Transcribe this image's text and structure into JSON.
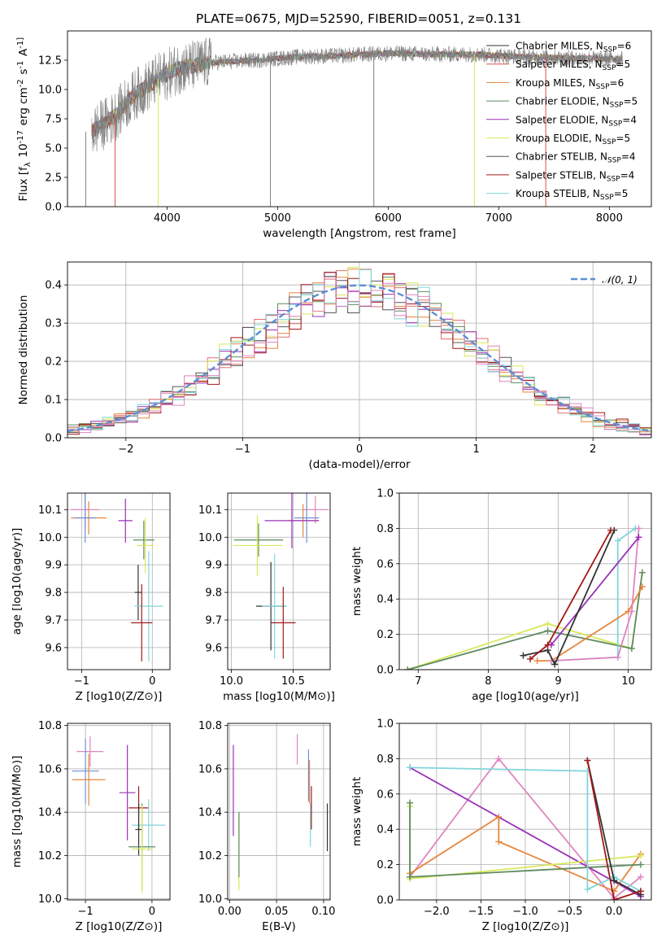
{
  "figure": {
    "title": "PLATE=0675, MJD=52590, FIBERID=0051, z=0.131"
  },
  "chart_data": [
    {
      "type": "line",
      "title": "PLATE=0675, MJD=52590, FIBERID=0051, z=0.131",
      "xlabel": "wavelength [Angstrom, rest frame]",
      "ylabel": "Flux [f_λ 10^-17 erg cm^-2 s^-1 A^-1]",
      "xlim": [
        3100,
        8380
      ],
      "ylim": [
        0,
        15
      ],
      "xticks": [
        4000,
        5000,
        6000,
        7000,
        8000
      ],
      "yticks": [
        0.0,
        2.5,
        5.0,
        7.5,
        10.0,
        12.5
      ],
      "legend_position": "right",
      "x_range_data": [
        3320,
        8120
      ],
      "continuum": [
        [
          3320,
          6.4
        ],
        [
          3500,
          7.5
        ],
        [
          3700,
          9.5
        ],
        [
          3900,
          10.8
        ],
        [
          4100,
          11.8
        ],
        [
          4400,
          12.3
        ],
        [
          4800,
          12.5
        ],
        [
          5200,
          12.8
        ],
        [
          5600,
          12.9
        ],
        [
          6000,
          13.1
        ],
        [
          6400,
          13.0
        ],
        [
          6800,
          13.0
        ],
        [
          7200,
          12.8
        ],
        [
          7600,
          12.7
        ],
        [
          8120,
          12.6
        ]
      ],
      "series": [
        {
          "name": "Chabrier MILES",
          "nssp": 6,
          "color": "#333333"
        },
        {
          "name": "Salpeter MILES",
          "nssp": 5,
          "color": "#d9534f"
        },
        {
          "name": "Kroupa MILES",
          "nssp": 6,
          "color": "#e8853a"
        },
        {
          "name": "Chabrier ELODIE",
          "nssp": 5,
          "color": "#5e8a5e"
        },
        {
          "name": "Salpeter ELODIE",
          "nssp": 4,
          "color": "#9b30b8"
        },
        {
          "name": "Kroupa ELODIE",
          "nssp": 5,
          "color": "#d9e85a"
        },
        {
          "name": "Chabrier STELIB",
          "nssp": 4,
          "color": "#555555"
        },
        {
          "name": "Salpeter STELIB",
          "nssp": 4,
          "color": "#a31818"
        },
        {
          "name": "Kroupa STELIB",
          "nssp": 5,
          "color": "#7fd6dc"
        }
      ],
      "data_line": {
        "color": "#808080"
      }
    },
    {
      "type": "line",
      "xlabel": "(data-model)/error",
      "ylabel": "Normed distribution",
      "xlim": [
        -2.5,
        2.5
      ],
      "ylim": [
        0,
        0.46
      ],
      "xticks": [
        -2,
        -1,
        0,
        1,
        2
      ],
      "yticks": [
        0.0,
        0.1,
        0.2,
        0.3,
        0.4
      ],
      "grid": true,
      "legend": "𝒩(0, 1)",
      "legend_position": "top-right",
      "gaussian": {
        "mean": 0,
        "sigma": 1,
        "color": "#5b8fd6"
      },
      "histograms": {
        "bin_width": 0.1,
        "colors": [
          "#e07070",
          "#e8853a",
          "#5e8a5e",
          "#9b30b8",
          "#d9e85a",
          "#555555",
          "#a31818",
          "#7fd6dc",
          "#e084c0"
        ]
      }
    },
    {
      "type": "scatter",
      "xlabel": "Z [log10(Z/Z⊙)]",
      "ylabel": "age [log10(age/yr)]",
      "xlim": [
        -1.2,
        0.25
      ],
      "ylim": [
        9.52,
        10.16
      ],
      "xticks": [
        -1,
        0
      ],
      "yticks": [
        9.6,
        9.7,
        9.8,
        9.9,
        10.0,
        10.1
      ],
      "grid": true,
      "points": [
        {
          "x": -0.95,
          "y": 10.1,
          "xe": 0.2,
          "ye": 0.07,
          "color": "#e084c0"
        },
        {
          "x": -0.9,
          "y": 10.07,
          "xe": 0.25,
          "ye": 0.06,
          "color": "#e8853a"
        },
        {
          "x": -0.95,
          "y": 10.07,
          "xe": 0.15,
          "ye": 0.09,
          "color": "#6f8fd6"
        },
        {
          "x": -0.38,
          "y": 10.06,
          "xe": 0.1,
          "ye": 0.08,
          "color": "#9b30b8"
        },
        {
          "x": -0.12,
          "y": 9.99,
          "xe": 0.15,
          "ye": 0.07,
          "color": "#5e8a5e"
        },
        {
          "x": -0.1,
          "y": 9.97,
          "xe": 0.12,
          "ye": 0.1,
          "color": "#d9e85a"
        },
        {
          "x": -0.2,
          "y": 9.8,
          "xe": 0.05,
          "ye": 0.1,
          "color": "#333333"
        },
        {
          "x": -0.05,
          "y": 9.75,
          "xe": 0.2,
          "ye": 0.2,
          "color": "#7fd6dc"
        },
        {
          "x": -0.15,
          "y": 9.69,
          "xe": 0.15,
          "ye": 0.14,
          "color": "#a31818"
        }
      ]
    },
    {
      "type": "scatter",
      "xlabel": "mass [log10(M/M⊙)]",
      "xlim": [
        9.97,
        10.8
      ],
      "ylim": [
        9.52,
        10.16
      ],
      "xticks": [
        10.0,
        10.5
      ],
      "yticks": [
        9.6,
        9.7,
        9.8,
        9.9,
        10.0,
        10.1
      ],
      "grid": true,
      "points": [
        {
          "x": 10.68,
          "y": 10.1,
          "xe": 0.1,
          "ye": 0.05,
          "color": "#e084c0"
        },
        {
          "x": 10.58,
          "y": 10.06,
          "xe": 0.12,
          "ye": 0.06,
          "color": "#e8853a"
        },
        {
          "x": 10.61,
          "y": 10.07,
          "xe": 0.1,
          "ye": 0.09,
          "color": "#6f8fd6"
        },
        {
          "x": 10.49,
          "y": 10.06,
          "xe": 0.22,
          "ye": 0.1,
          "color": "#9b30b8"
        },
        {
          "x": 10.22,
          "y": 9.99,
          "xe": 0.2,
          "ye": 0.06,
          "color": "#5e8a5e"
        },
        {
          "x": 10.21,
          "y": 9.97,
          "xe": 0.2,
          "ye": 0.11,
          "color": "#d9e85a"
        },
        {
          "x": 10.32,
          "y": 9.75,
          "xe": 0.12,
          "ye": 0.16,
          "color": "#333333"
        },
        {
          "x": 10.35,
          "y": 9.75,
          "xe": 0.1,
          "ye": 0.19,
          "color": "#7fd6dc"
        },
        {
          "x": 10.42,
          "y": 9.69,
          "xe": 0.1,
          "ye": 0.13,
          "color": "#a31818"
        }
      ]
    },
    {
      "type": "line",
      "xlabel": "age [log10(age/yr)]",
      "ylabel": "mass weight",
      "xlim": [
        6.73,
        10.33
      ],
      "ylim": [
        0,
        1
      ],
      "xticks": [
        7,
        8,
        9,
        10
      ],
      "yticks": [
        0.0,
        0.2,
        0.4,
        0.6,
        0.8,
        1.0
      ],
      "grid": true,
      "series": [
        {
          "color": "#d9e85a",
          "points": [
            [
              6.85,
              0.0
            ],
            [
              8.85,
              0.26
            ],
            [
              10.05,
              0.12
            ],
            [
              10.2,
              0.55
            ]
          ]
        },
        {
          "color": "#5e8a5e",
          "points": [
            [
              6.85,
              0.0
            ],
            [
              8.85,
              0.22
            ],
            [
              10.05,
              0.12
            ],
            [
              10.2,
              0.55
            ]
          ]
        },
        {
          "color": "#7fd6dc",
          "points": [
            [
              8.9,
              0.05
            ],
            [
              9.85,
              0.07
            ],
            [
              9.85,
              0.73
            ],
            [
              10.1,
              0.8
            ]
          ]
        },
        {
          "color": "#e8853a",
          "points": [
            [
              8.7,
              0.05
            ],
            [
              8.9,
              0.05
            ],
            [
              10.0,
              0.33
            ],
            [
              10.2,
              0.47
            ]
          ]
        },
        {
          "color": "#e084c0",
          "points": [
            [
              8.9,
              0.05
            ],
            [
              9.85,
              0.07
            ],
            [
              10.05,
              0.33
            ],
            [
              10.15,
              0.8
            ]
          ]
        },
        {
          "color": "#9b30b8",
          "points": [
            [
              8.9,
              0.14
            ],
            [
              10.15,
              0.75
            ]
          ]
        },
        {
          "color": "#333333",
          "points": [
            [
              8.5,
              0.08
            ],
            [
              8.85,
              0.11
            ],
            [
              8.95,
              0.03
            ],
            [
              9.8,
              0.79
            ]
          ]
        },
        {
          "color": "#a31818",
          "points": [
            [
              8.6,
              0.06
            ],
            [
              8.85,
              0.14
            ],
            [
              9.75,
              0.79
            ]
          ]
        }
      ]
    },
    {
      "type": "scatter",
      "xlabel": "Z [log10(Z/Z⊙)]",
      "ylabel": "mass [log10(M/M⊙)]",
      "xlim": [
        -1.27,
        0.27
      ],
      "ylim": [
        9.995,
        10.81
      ],
      "xticks": [
        -1,
        0
      ],
      "yticks": [
        10.0,
        10.2,
        10.4,
        10.6,
        10.8
      ],
      "grid": true,
      "points": [
        {
          "x": -0.93,
          "y": 10.68,
          "xe": 0.2,
          "ye": 0.07,
          "color": "#e084c0"
        },
        {
          "x": -1.0,
          "y": 10.59,
          "xe": 0.2,
          "ye": 0.15,
          "color": "#6f8fd6"
        },
        {
          "x": -0.95,
          "y": 10.55,
          "xe": 0.25,
          "ye": 0.12,
          "color": "#e8853a"
        },
        {
          "x": -0.37,
          "y": 10.49,
          "xe": 0.12,
          "ye": 0.22,
          "color": "#9b30b8"
        },
        {
          "x": -0.2,
          "y": 10.42,
          "xe": 0.15,
          "ye": 0.1,
          "color": "#a31818"
        },
        {
          "x": -0.05,
          "y": 10.34,
          "xe": 0.25,
          "ye": 0.12,
          "color": "#7fd6dc"
        },
        {
          "x": -0.2,
          "y": 10.32,
          "xe": 0.05,
          "ye": 0.12,
          "color": "#333333"
        },
        {
          "x": -0.15,
          "y": 10.24,
          "xe": 0.2,
          "ye": 0.2,
          "color": "#5e8a5e"
        },
        {
          "x": -0.15,
          "y": 10.23,
          "xe": 0.15,
          "ye": 0.2,
          "color": "#d9e85a"
        }
      ]
    },
    {
      "type": "scatter",
      "xlabel": "E(B-V)",
      "xlim": [
        -0.002,
        0.107
      ],
      "ylim": [
        9.995,
        10.81
      ],
      "xticks": [
        0.0,
        0.05,
        0.1
      ],
      "yticks": [
        10.0,
        10.2,
        10.4,
        10.6,
        10.8
      ],
      "grid": true,
      "points": [
        {
          "x": 0.004,
          "y": 10.5,
          "ye": 0.21,
          "color": "#9b30b8"
        },
        {
          "x": 0.01,
          "y": 10.22,
          "ye": 0.18,
          "color": "#d9e85a"
        },
        {
          "x": 0.01,
          "y": 10.25,
          "ye": 0.15,
          "color": "#5e8a5e"
        },
        {
          "x": 0.072,
          "y": 10.69,
          "ye": 0.07,
          "color": "#e084c0"
        },
        {
          "x": 0.084,
          "y": 10.57,
          "ye": 0.12,
          "color": "#6f8fd6"
        },
        {
          "x": 0.085,
          "y": 10.54,
          "ye": 0.1,
          "color": "#e8853a"
        },
        {
          "x": 0.086,
          "y": 10.34,
          "ye": 0.1,
          "color": "#7fd6dc"
        },
        {
          "x": 0.087,
          "y": 10.42,
          "ye": 0.1,
          "color": "#a31818"
        },
        {
          "x": 0.104,
          "y": 10.33,
          "ye": 0.11,
          "color": "#333333"
        }
      ]
    },
    {
      "type": "line",
      "xlabel": "Z [log10(Z/Z⊙)]",
      "ylabel": "mass weight",
      "xlim": [
        -2.42,
        0.42
      ],
      "ylim": [
        0,
        1
      ],
      "xticks": [
        -2.0,
        -1.5,
        -1.0,
        -0.5,
        0.0
      ],
      "yticks": [
        0.0,
        0.2,
        0.4,
        0.6,
        0.8,
        1.0
      ],
      "grid": true,
      "series": [
        {
          "color": "#e084c0",
          "points": [
            [
              -2.3,
              0.13
            ],
            [
              -1.3,
              0.8
            ],
            [
              0.0,
              0.01
            ],
            [
              0.3,
              0.13
            ]
          ]
        },
        {
          "color": "#9b30b8",
          "points": [
            [
              -2.3,
              0.75
            ],
            [
              0.3,
              0.02
            ]
          ]
        },
        {
          "color": "#e8853a",
          "points": [
            [
              -2.3,
              0.15
            ],
            [
              -1.3,
              0.47
            ],
            [
              -1.3,
              0.33
            ],
            [
              0.0,
              0.05
            ],
            [
              0.3,
              0.26
            ]
          ]
        },
        {
          "color": "#d9e85a",
          "points": [
            [
              -2.3,
              0.53
            ],
            [
              -2.3,
              0.12
            ],
            [
              0.3,
              0.25
            ]
          ]
        },
        {
          "color": "#5e8a5e",
          "points": [
            [
              -2.3,
              0.55
            ],
            [
              -2.3,
              0.13
            ],
            [
              0.3,
              0.2
            ]
          ]
        },
        {
          "color": "#7fd6dc",
          "points": [
            [
              -2.3,
              0.75
            ],
            [
              -0.3,
              0.73
            ],
            [
              -0.3,
              0.06
            ],
            [
              0.0,
              0.13
            ],
            [
              0.3,
              0.05
            ]
          ]
        },
        {
          "color": "#333333",
          "points": [
            [
              -0.3,
              0.79
            ],
            [
              0.0,
              0.11
            ],
            [
              0.3,
              0.03
            ]
          ]
        },
        {
          "color": "#a31818",
          "points": [
            [
              -0.3,
              0.79
            ],
            [
              0.0,
              0.0
            ],
            [
              0.3,
              0.05
            ]
          ]
        }
      ]
    }
  ]
}
